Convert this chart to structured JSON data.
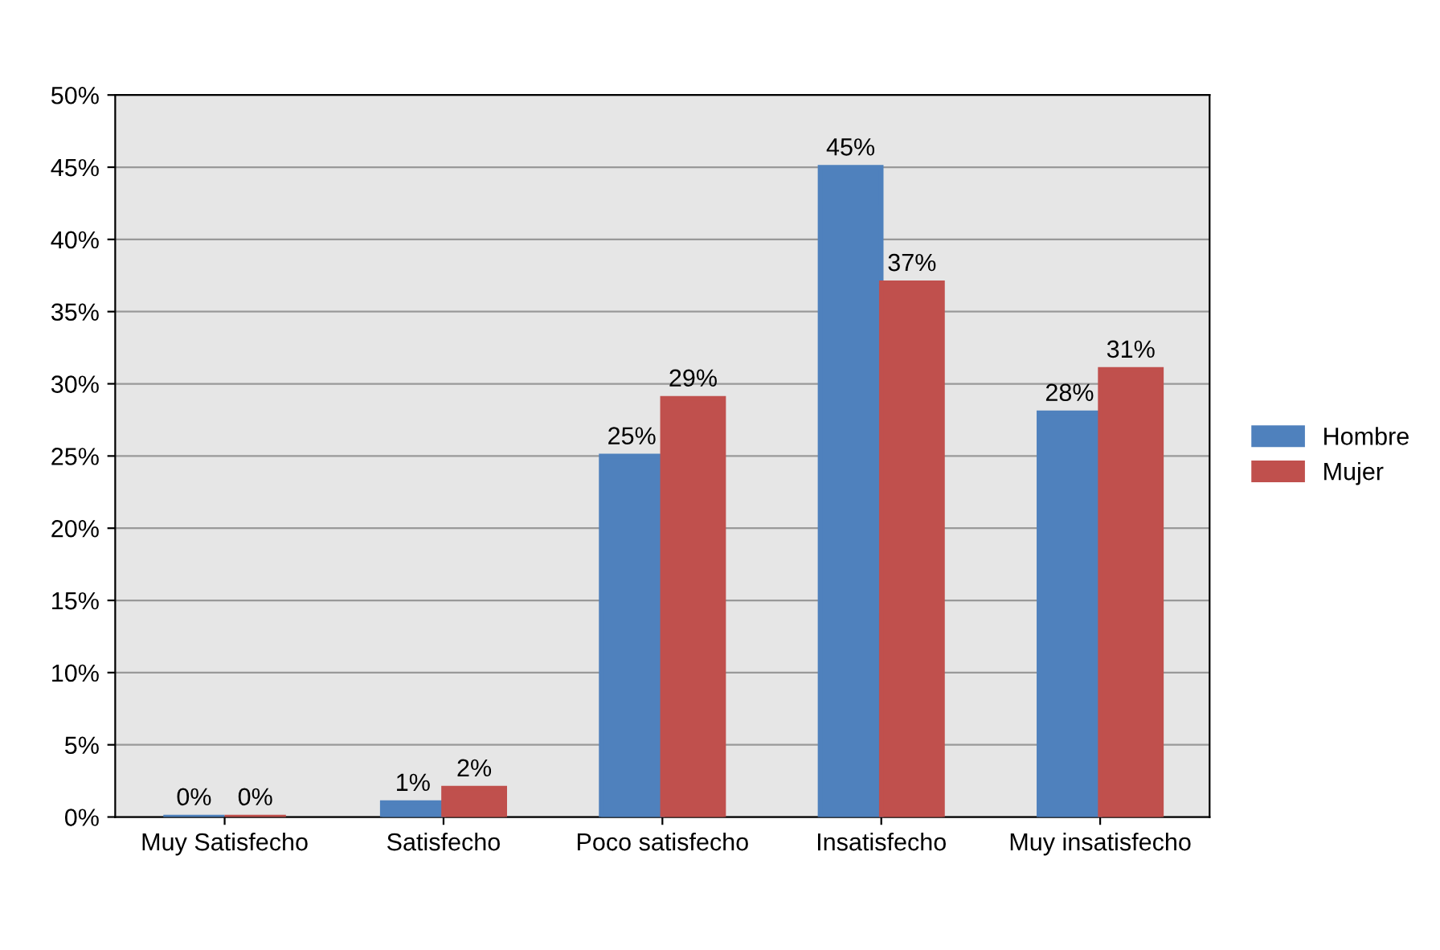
{
  "chart_data": {
    "type": "bar",
    "categories": [
      "Muy Satisfecho",
      "Satisfecho",
      "Poco satisfecho",
      "Insatisfecho",
      "Muy insatisfecho"
    ],
    "series": [
      {
        "name": "Hombre",
        "color": "#4f81bd",
        "values": [
          0,
          1,
          25,
          45,
          28
        ],
        "value_labels": [
          "0%",
          "1%",
          "25%",
          "45%",
          "28%"
        ]
      },
      {
        "name": "Mujer",
        "color": "#c0504d",
        "values": [
          0,
          2,
          29,
          37,
          31
        ],
        "value_labels": [
          "0%",
          "2%",
          "29%",
          "37%",
          "31%"
        ]
      }
    ],
    "ylim": [
      0,
      50
    ],
    "yticks": [
      {
        "value": 0,
        "label": "0%"
      },
      {
        "value": 5,
        "label": "5%"
      },
      {
        "value": 10,
        "label": "10%"
      },
      {
        "value": 15,
        "label": "15%"
      },
      {
        "value": 20,
        "label": "20%"
      },
      {
        "value": 25,
        "label": "25%"
      },
      {
        "value": 30,
        "label": "30%"
      },
      {
        "value": 35,
        "label": "35%"
      },
      {
        "value": 40,
        "label": "40%"
      },
      {
        "value": 45,
        "label": "45%"
      },
      {
        "value": 50,
        "label": "50%"
      }
    ],
    "grid": "y",
    "legend": "right"
  }
}
